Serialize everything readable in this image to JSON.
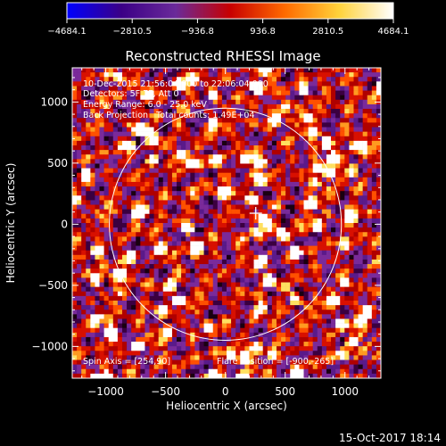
{
  "chart_data": {
    "type": "heatmap",
    "title": "Reconstructed RHESSI Image",
    "xlabel": "Heliocentric X (arcsec)",
    "ylabel": "Heliocentric Y (arcsec)",
    "xlim": [
      -1280,
      1300
    ],
    "ylim": [
      -1260,
      1280
    ],
    "x_ticks": [
      -1000,
      -500,
      0,
      500,
      1000
    ],
    "x_tick_labels": [
      "−1000",
      "−500",
      "0",
      "500",
      "1000"
    ],
    "y_ticks": [
      -1000,
      -500,
      0,
      500,
      1000
    ],
    "y_tick_labels": [
      "−1000",
      "−500",
      "0",
      "500",
      "1000"
    ],
    "colorbar": {
      "ticks": [
        -4684.1,
        -2810.5,
        -936.8,
        936.8,
        2810.5,
        4684.1
      ],
      "tick_labels": [
        "−4684.1",
        "−2810.5",
        "−936.8",
        "936.8",
        "2810.5",
        "4684.1"
      ],
      "range": [
        -4684.1,
        4684.1
      ],
      "colors": [
        "#0000ff",
        "#3b0086",
        "#6a2a9a",
        "#c80000",
        "#ff6a00",
        "#ffd23a",
        "#ffffff"
      ]
    },
    "annotations": {
      "time_range": "10-Dec-2015 21:56:04.000 to 22:06:04.000",
      "detectors": "Detectors: 5F 7F, Att 0",
      "energy_range": "Energy Range: 6.0 - 25.0 keV",
      "method_counts": "Back Projection   Total counts: 1.49E+04",
      "spin_axis": "Spin Axis = [254,90]",
      "flare_position": "Flare Position = [-900,-265]"
    },
    "solar_limb_radius": 970,
    "spin_axis_marker": [
      254,
      90
    ],
    "grid": false
  },
  "footer": {
    "timestamp": "15-Oct-2017 18:14"
  }
}
